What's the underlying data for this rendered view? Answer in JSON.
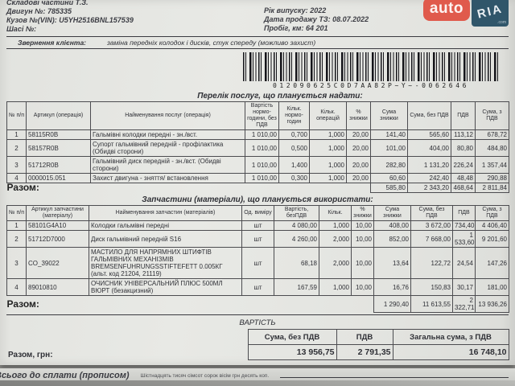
{
  "logo": {
    "auto_text": "auto",
    "ria_text": "RIA",
    "com_text": ".com",
    "auto_bg": "#e05a4c",
    "ria_bg": "#30566a"
  },
  "header": {
    "left": [
      {
        "label": "Складові частини Т.З.",
        "value": ""
      },
      {
        "label": "Двигун №:",
        "value": "785335"
      },
      {
        "label": "Кузов №(VIN):",
        "value": "U5YH2516BNL157539"
      },
      {
        "label": "Шасі №:",
        "value": ""
      }
    ],
    "right": [
      {
        "label": "Рік випуску:",
        "value": "2022"
      },
      {
        "label": "Дата продажу ТЗ:",
        "value": "08.07.2022"
      },
      {
        "label": "Пробіг, км:",
        "value": "64 201"
      }
    ],
    "client_request_label": "Звернення клієнта:",
    "client_request_value": "заміна передніх колодок і дисків,  стук спереду (можливо захист)"
  },
  "barcode": {
    "text": "012090625C0D7AA82P~Y~-0062646"
  },
  "services": {
    "title": "Перелік послуг, що планується надати:",
    "columns": [
      "№ п/п",
      "Артикул (операція)",
      "Найменування послуг (операція)",
      "Вартість нормо-години, без ПДВ",
      "Кільк. нормо-годин",
      "Кільк. операцій",
      "% знижки",
      "Сума знижки",
      "Сума, без ПДВ",
      "ПДВ",
      "Сума, з ПДВ"
    ],
    "rows": [
      [
        "1",
        "58115R0B",
        "Гальмівні колодки передні - зн./вст.",
        "1 010,00",
        "0,700",
        "1,000",
        "20,00",
        "141,40",
        "565,60",
        "113,12",
        "678,72"
      ],
      [
        "2",
        "58157R0B",
        "Супорт гальмівний передній - профілактика (Обидві сторони)",
        "1 010,00",
        "0,500",
        "1,000",
        "20,00",
        "101,00",
        "404,00",
        "80,80",
        "484,80"
      ],
      [
        "3",
        "51712R0B",
        "Гальмівний диск передній - зн./вст. (Обидві сторони)",
        "1 010,00",
        "1,400",
        "1,000",
        "20,00",
        "282,80",
        "1 131,20",
        "226,24",
        "1 357,44"
      ],
      [
        "4",
        "0000015.051",
        "Захист двигуна - зняття/ встановлення",
        "1 010,00",
        "0,300",
        "1,000",
        "20,00",
        "60,60",
        "242,40",
        "48,48",
        "290,88"
      ]
    ],
    "total_label": "Разом:",
    "totals": {
      "discount": "585,80",
      "net": "2 343,20",
      "vat": "468,64",
      "gross": "2 811,84"
    }
  },
  "parts": {
    "title": "Запчастини (матеріали), що планується використати:",
    "columns": [
      "№ п/п",
      "Артикул запчастини (матеріалу)",
      "Найменування запчастин (матеріалів)",
      "Од. виміру",
      "Вартість, безПДВ",
      "Кільк.",
      "% знижки",
      "Сума знижки",
      "Сума, без ПДВ",
      "ПДВ",
      "Сума, з ПДВ"
    ],
    "rows": [
      [
        "1",
        "58101G4A10",
        "Колодки гальмівні передні",
        "шт",
        "4 080,00",
        "1,000",
        "10,00",
        "408,00",
        "3 672,00",
        "734,40",
        "4 406,40"
      ],
      [
        "2",
        "51712D7000",
        "Диск гальмівний передній S16",
        "шт",
        "4 260,00",
        "2,000",
        "10,00",
        "852,00",
        "7 668,00",
        "1 533,60",
        "9 201,60"
      ],
      [
        "3",
        "CO_39022",
        "МАСТИЛО ДЛЯ НАПРЯМНИХ ШТИФТІВ ГАЛЬМІВНИХ МЕХАНІЗМІВ BREMSENFUHRUNGSSTIFTEFETT 0.005КГ (альт. код 21204, 21119)",
        "шт",
        "68,18",
        "2,000",
        "10,00",
        "13,64",
        "122,72",
        "24,54",
        "147,26"
      ],
      [
        "4",
        "89010810",
        "ОЧИСНИК УНІВЕРСАЛЬНИЙ ПЛЮС 500МЛ ВЮРТ (безакцизний)",
        "шт",
        "167,59",
        "1,000",
        "10,00",
        "16,76",
        "150,83",
        "30,17",
        "181,00"
      ]
    ],
    "total_label": "Разом:",
    "totals": {
      "discount": "1 290,40",
      "net": "11 613,55",
      "vat": "2 322,71",
      "gross": "13 936,26"
    }
  },
  "summary": {
    "title": "ВАРТІСТЬ",
    "columns": [
      "Сума, без ПДВ",
      "ПДВ",
      "Загальна сума, з ПДВ"
    ],
    "row_label": "Разом, грн:",
    "values": [
      "13 956,75",
      "2 791,35",
      "16 748,10"
    ]
  },
  "footer": {
    "label": "Всього до сплати (прописом)",
    "amount_words": "Шістнадцять тисяч сімсот сорок вісім грн десять коп."
  }
}
